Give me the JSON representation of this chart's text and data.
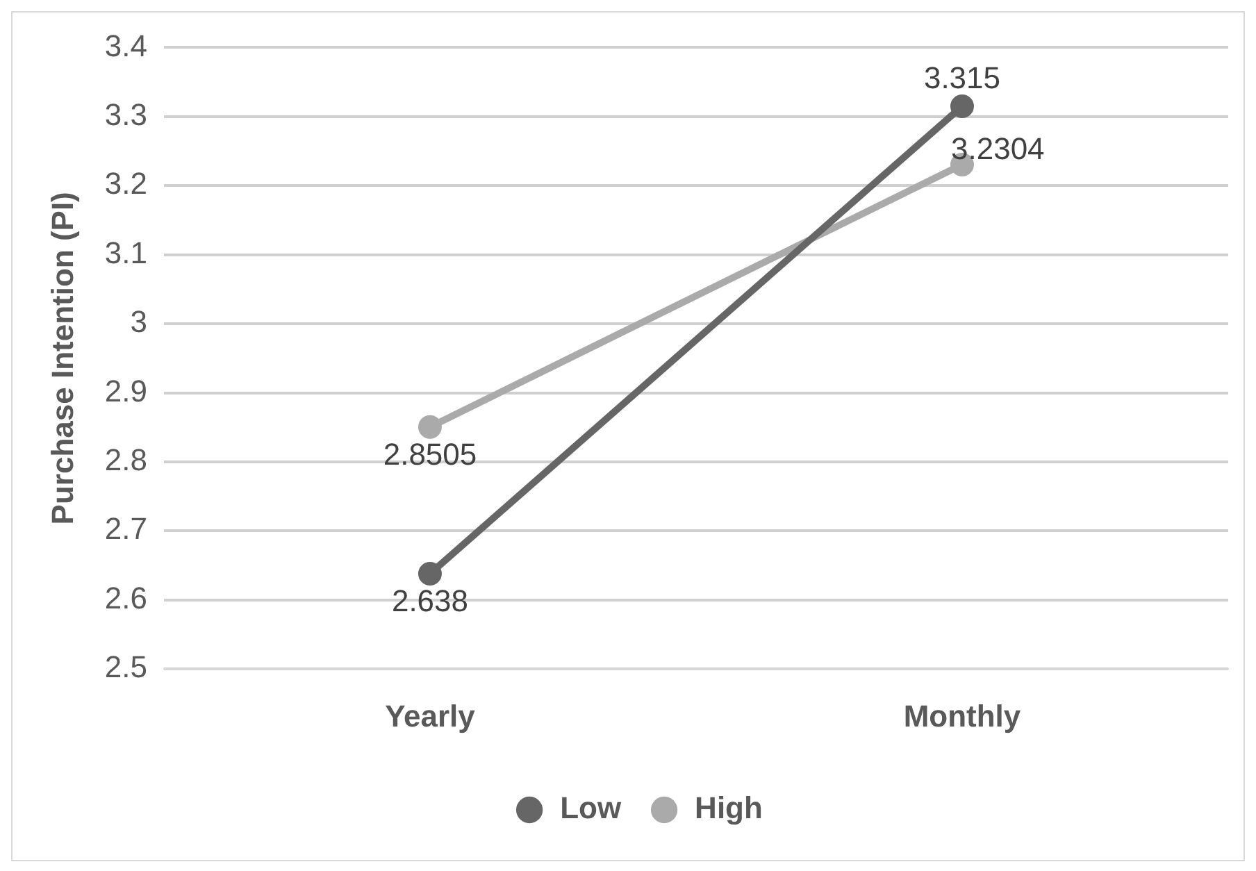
{
  "chart_data": {
    "type": "line",
    "ylabel": "Purchase Intention (PI)",
    "categories": [
      "Yearly",
      "Monthly"
    ],
    "series": [
      {
        "name": "Low",
        "color": "#666666",
        "values": [
          2.638,
          3.315
        ]
      },
      {
        "name": "High",
        "color": "#aaaaaa",
        "values": [
          2.8505,
          3.2304
        ]
      }
    ],
    "ylim": [
      2.5,
      3.4
    ],
    "yticks": [
      2.5,
      2.6,
      2.7,
      2.8,
      2.9,
      3,
      3.1,
      3.2,
      3.3,
      3.4
    ],
    "grid": "y",
    "legend": "bottom",
    "marker": "circle",
    "data_labels": true
  }
}
